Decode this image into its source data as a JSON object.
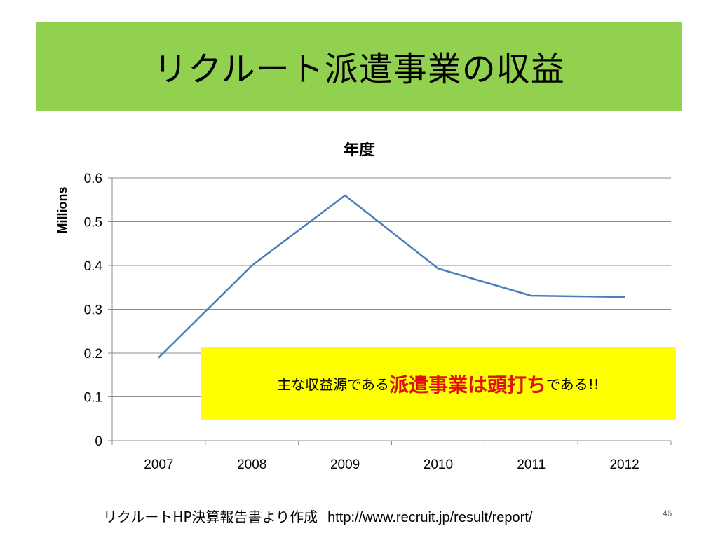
{
  "slide": {
    "title": "リクルート派遣事業の収益",
    "page_number": "46",
    "title_bar_color": "#92d050"
  },
  "callout": {
    "prefix": "主な収益源である",
    "emphasis": "派遣事業は頭打ち",
    "suffix": "である!!",
    "background": "#ffff00",
    "emphasis_color": "#e01010"
  },
  "footer": {
    "source": "リクルートHP決算報告書より作成",
    "url": "http://www.recruit.jp/result/report/"
  },
  "chart_data": {
    "type": "line",
    "title": "年度",
    "ylabel": "Millions",
    "xlabel": "",
    "categories": [
      "2007",
      "2008",
      "2009",
      "2010",
      "2011",
      "2012"
    ],
    "series": [
      {
        "values": [
          0.19,
          0.4,
          0.56,
          0.393,
          0.331,
          0.328
        ],
        "color": "#4a7ebb"
      }
    ],
    "yticks": [
      "0",
      "0.1",
      "0.2",
      "0.3",
      "0.4",
      "0.5",
      "0.6"
    ],
    "ylim": [
      0,
      0.6
    ],
    "grid": true,
    "legend": "none"
  }
}
